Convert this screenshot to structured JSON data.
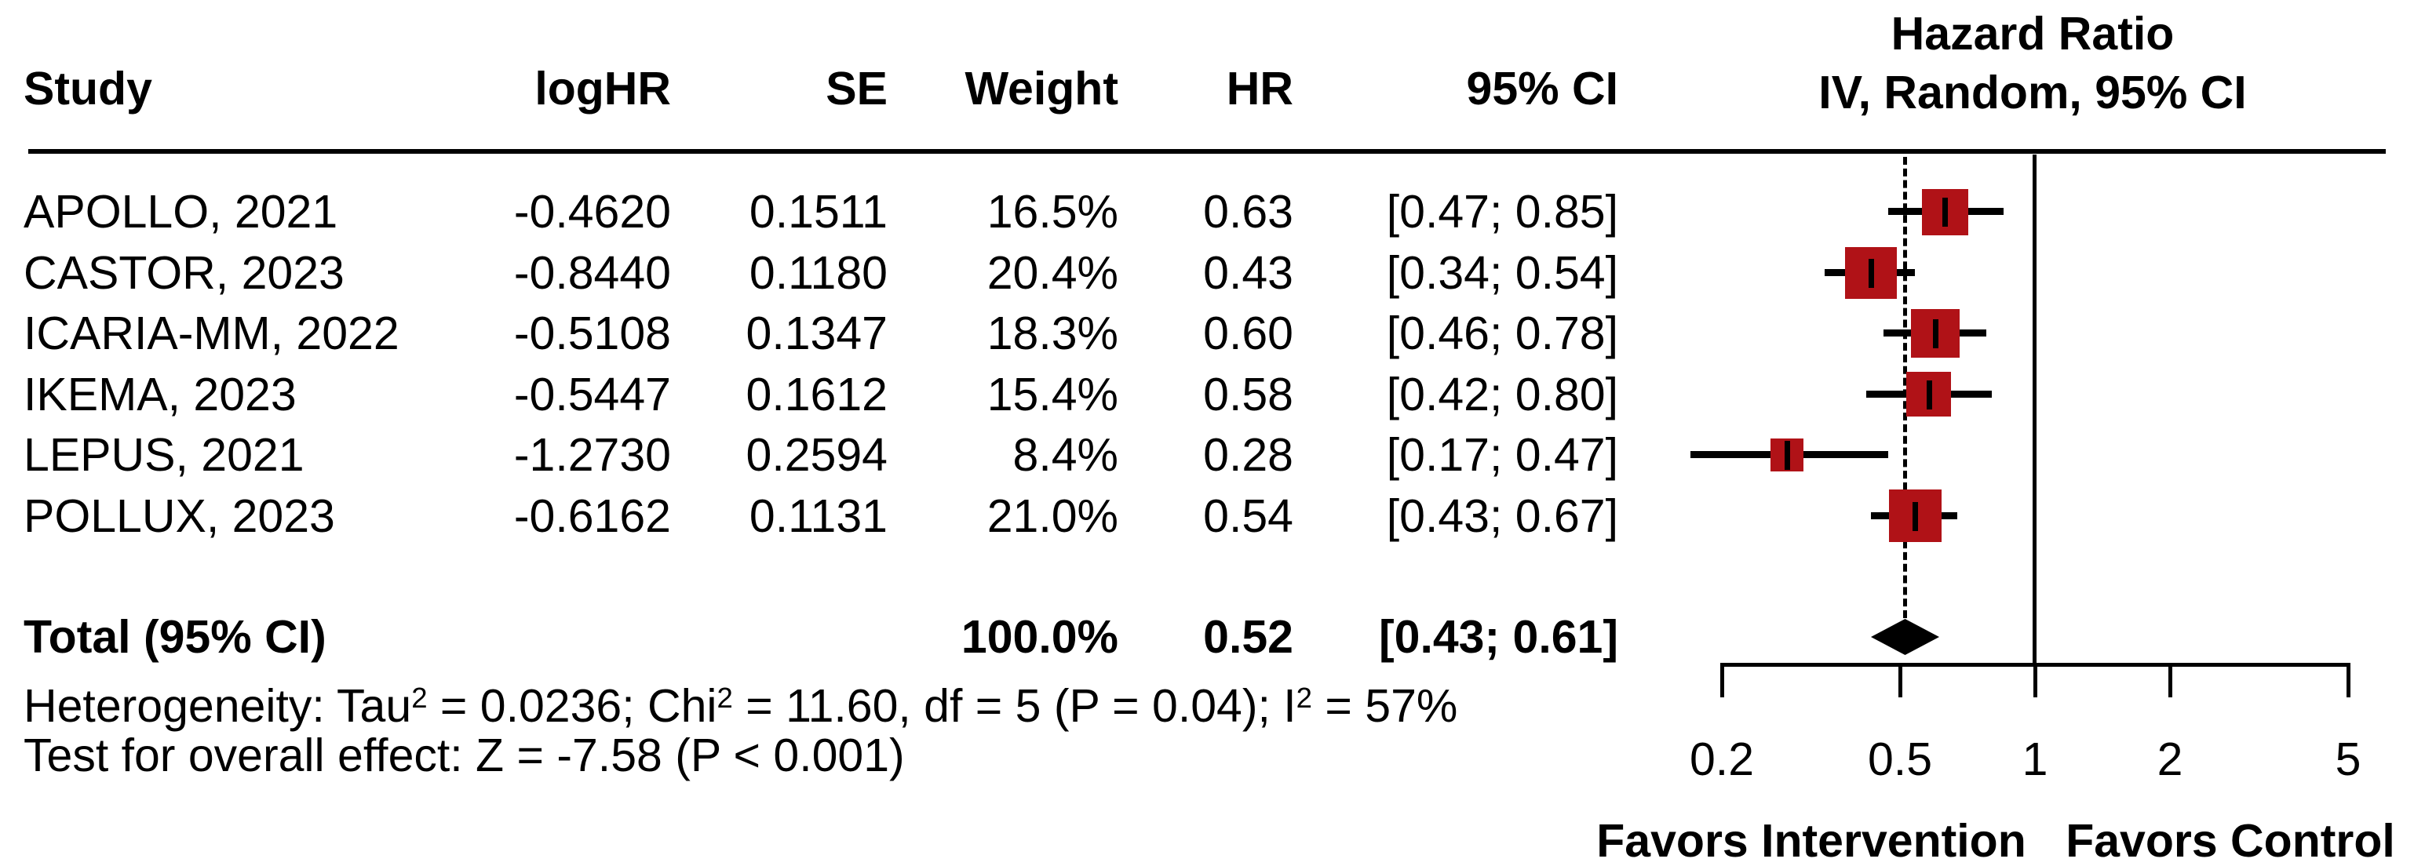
{
  "colors": {
    "marker_red": "#b01217",
    "line_black": "#000000",
    "text": "#000000",
    "background": "#ffffff"
  },
  "table": {
    "headers": {
      "study": "Study",
      "loghr": "logHR",
      "se": "SE",
      "weight": "Weight",
      "hr": "HR",
      "ci": "95% CI"
    },
    "plot_header_line1": "Hazard Ratio",
    "plot_header_line2": "IV, Random, 95% CI"
  },
  "chart_data": {
    "type": "forest",
    "x_scale": "log",
    "x_tick_labels": [
      "0.2",
      "0.5",
      "1",
      "2",
      "5"
    ],
    "x_tick_values": [
      0.2,
      0.5,
      1,
      2,
      5
    ],
    "x_range": [
      0.2,
      5
    ],
    "reference_line": 1,
    "pooled_dashed_line": 0.52,
    "studies": [
      {
        "name": "APOLLO, 2021",
        "loghr": "-0.4620",
        "se": "0.1511",
        "weight": "16.5%",
        "hr_label": "0.63",
        "ci_label": "[0.47; 0.85]",
        "hr": 0.63,
        "lo": 0.47,
        "hi": 0.85,
        "weight_pct": 16.5
      },
      {
        "name": "CASTOR, 2023",
        "loghr": "-0.8440",
        "se": "0.1180",
        "weight": "20.4%",
        "hr_label": "0.43",
        "ci_label": "[0.34; 0.54]",
        "hr": 0.43,
        "lo": 0.34,
        "hi": 0.54,
        "weight_pct": 20.4
      },
      {
        "name": "ICARIA-MM, 2022",
        "loghr": "-0.5108",
        "se": "0.1347",
        "weight": "18.3%",
        "hr_label": "0.60",
        "ci_label": "[0.46; 0.78]",
        "hr": 0.6,
        "lo": 0.46,
        "hi": 0.78,
        "weight_pct": 18.3
      },
      {
        "name": "IKEMA, 2023",
        "loghr": "-0.5447",
        "se": "0.1612",
        "weight": "15.4%",
        "hr_label": "0.58",
        "ci_label": "[0.42; 0.80]",
        "hr": 0.58,
        "lo": 0.42,
        "hi": 0.8,
        "weight_pct": 15.4
      },
      {
        "name": "LEPUS, 2021",
        "loghr": "-1.2730",
        "se": "0.2594",
        "weight": "8.4%",
        "hr_label": "0.28",
        "ci_label": "[0.17; 0.47]",
        "hr": 0.28,
        "lo": 0.17,
        "hi": 0.47,
        "weight_pct": 8.4
      },
      {
        "name": "POLLUX, 2023",
        "loghr": "-0.6162",
        "se": "0.1131",
        "weight": "21.0%",
        "hr_label": "0.54",
        "ci_label": "[0.43; 0.67]",
        "hr": 0.54,
        "lo": 0.43,
        "hi": 0.67,
        "weight_pct": 21.0
      }
    ],
    "total": {
      "label": "Total (95% CI)",
      "weight": "100.0%",
      "hr_label": "0.52",
      "ci_label": "[0.43; 0.61]",
      "hr": 0.52,
      "lo": 0.43,
      "hi": 0.61
    },
    "heterogeneity_segments": [
      {
        "text": "Heterogeneity: Tau"
      },
      {
        "sup": "2"
      },
      {
        "text": " = 0.0236; Chi"
      },
      {
        "sup": "2"
      },
      {
        "text": " = 11.60, df = 5 (P = 0.04); I"
      },
      {
        "sup": "2"
      },
      {
        "text": " = 57%"
      }
    ],
    "overall_effect_text": "Test for overall effect: Z = -7.58 (P < 0.001)",
    "favors_left": "Favors Intervention",
    "favors_right": "Favors Control"
  }
}
